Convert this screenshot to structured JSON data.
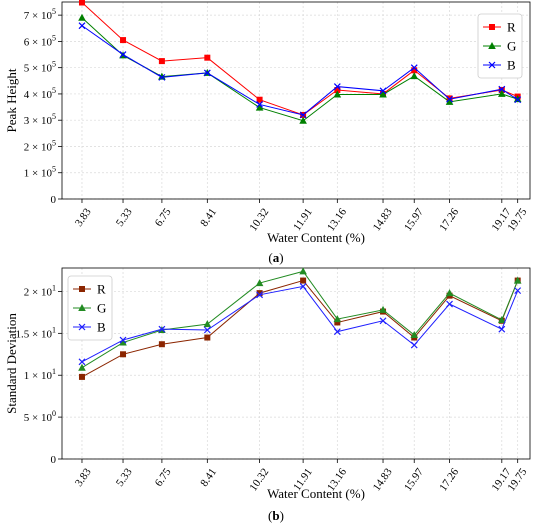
{
  "chart_data": [
    {
      "type": "line",
      "panel_label": "(a)",
      "xlabel": "Water Content (%)",
      "ylabel": "Peak Height",
      "x": [
        3.83,
        5.33,
        6.75,
        8.41,
        10.32,
        11.91,
        13.16,
        14.83,
        15.97,
        17.26,
        19.17,
        19.75
      ],
      "x_tick_labels": [
        "3.83",
        "5.33",
        "6.75",
        "8.41",
        "10.32",
        "11.91",
        "13.16",
        "14.83",
        "15.97",
        "17.26",
        "19.17",
        "19.75"
      ],
      "ylim": [
        0,
        750000
      ],
      "y_ticks": [
        0,
        100000,
        200000,
        300000,
        400000,
        500000,
        600000,
        700000
      ],
      "y_tick_labels": [
        {
          "mant": "0",
          "exp": ""
        },
        {
          "mant": "1 × 10",
          "exp": "5"
        },
        {
          "mant": "2 × 10",
          "exp": "5"
        },
        {
          "mant": "3 × 10",
          "exp": "5"
        },
        {
          "mant": "4 × 10",
          "exp": "5"
        },
        {
          "mant": "5 × 10",
          "exp": "5"
        },
        {
          "mant": "6 × 10",
          "exp": "5"
        },
        {
          "mant": "7 × 10",
          "exp": "5"
        }
      ],
      "grid": true,
      "legend_position": "top-right",
      "series": [
        {
          "name": "R",
          "color": "#ff0000",
          "marker": "square",
          "values": [
            748000,
            605000,
            525000,
            538000,
            378000,
            320000,
            415000,
            400000,
            490000,
            383000,
            415000,
            390000
          ]
        },
        {
          "name": "G",
          "color": "#008000",
          "marker": "triangle",
          "values": [
            690000,
            547000,
            466000,
            480000,
            348000,
            298000,
            398000,
            398000,
            468000,
            370000,
            400000,
            380000
          ]
        },
        {
          "name": "B",
          "color": "#0000ff",
          "marker": "x",
          "values": [
            660000,
            550000,
            463000,
            480000,
            360000,
            320000,
            428000,
            412000,
            500000,
            380000,
            418000,
            378000
          ]
        }
      ]
    },
    {
      "type": "line",
      "panel_label": "(b)",
      "xlabel": "Water Content (%)",
      "ylabel": "Standard Deviation",
      "x": [
        3.83,
        5.33,
        6.75,
        8.41,
        10.32,
        11.91,
        13.16,
        14.83,
        15.97,
        17.26,
        19.17,
        19.75
      ],
      "x_tick_labels": [
        "3.83",
        "5.33",
        "6.75",
        "8.41",
        "10.32",
        "11.91",
        "13.16",
        "14.83",
        "15.97",
        "17.26",
        "19.17",
        "19.75"
      ],
      "ylim": [
        0,
        22.8
      ],
      "y_ticks": [
        0,
        5,
        10,
        15,
        20
      ],
      "y_tick_labels": [
        {
          "mant": "0",
          "exp": ""
        },
        {
          "mant": "5 × 10",
          "exp": "0"
        },
        {
          "mant": "1 × 10",
          "exp": "1"
        },
        {
          "mant": "1.5 × 10",
          "exp": "1"
        },
        {
          "mant": "2 × 10",
          "exp": "1"
        }
      ],
      "grid": true,
      "legend_position": "top-left",
      "series": [
        {
          "name": "R",
          "color": "#8b2500",
          "marker": "square",
          "values": [
            9.8,
            12.5,
            13.7,
            14.5,
            19.8,
            21.3,
            16.3,
            17.6,
            14.5,
            19.5,
            16.5,
            21.3
          ]
        },
        {
          "name": "G",
          "color": "#228b22",
          "marker": "triangle",
          "values": [
            10.9,
            13.9,
            15.4,
            16.1,
            21.0,
            22.4,
            16.7,
            17.8,
            14.8,
            19.8,
            16.6,
            21.3
          ]
        },
        {
          "name": "B",
          "color": "#1f1fff",
          "marker": "x",
          "values": [
            11.6,
            14.2,
            15.5,
            15.4,
            19.6,
            20.6,
            15.2,
            16.5,
            13.6,
            18.5,
            15.5,
            20.1
          ]
        }
      ]
    }
  ]
}
